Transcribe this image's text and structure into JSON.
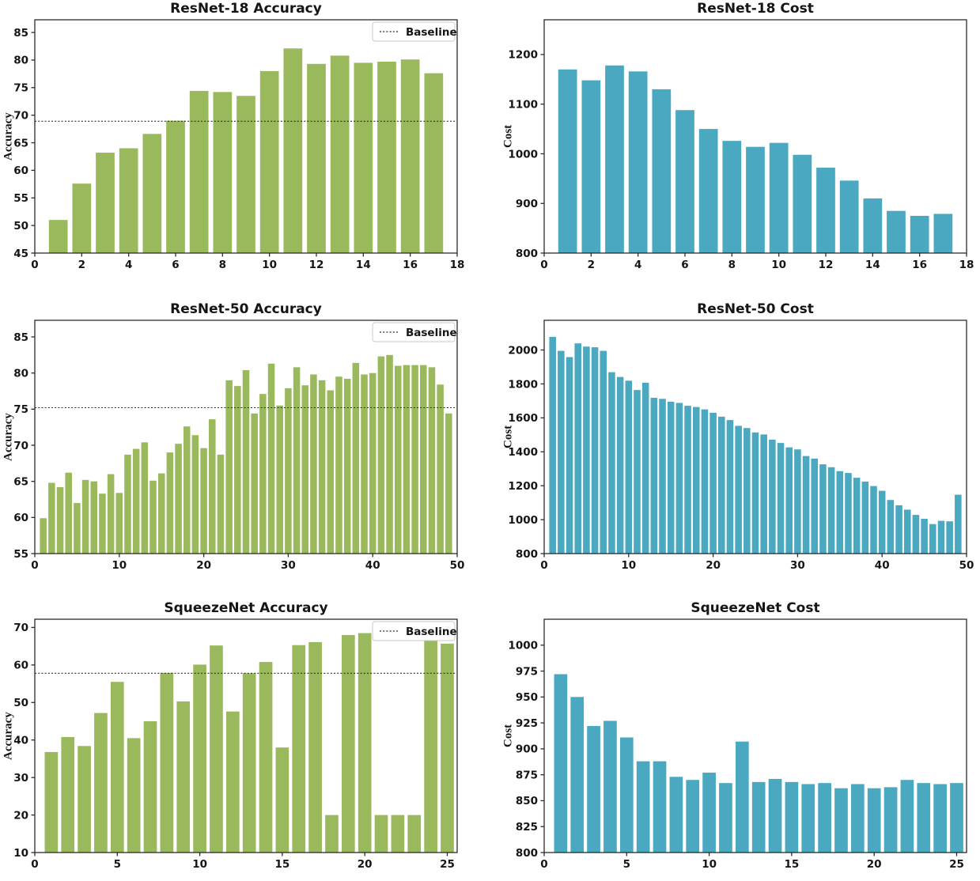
{
  "figure": {
    "background": "#ffffff",
    "rows": 3,
    "cols": 2
  },
  "colors": {
    "accuracy_bars": "#9ab95c",
    "cost_bars": "#4aa8c0",
    "baseline_line": "#2b2b2b",
    "axis": "#2b2b2b",
    "text": "#151515",
    "legend_border": "#c9c9c9"
  },
  "chart_data": [
    {
      "id": "resnet18-accuracy",
      "type": "bar",
      "title": "ResNet-18 Accuracy",
      "xlabel": "",
      "ylabel": "Accuracy",
      "bar_color": "#9ab95c",
      "grid": false,
      "legend_label": "Baseline",
      "legend_position": "upper right",
      "baseline": 68.9,
      "xlim": [
        0,
        18
      ],
      "ylim": [
        45,
        87.3
      ],
      "xticks": [
        0,
        2,
        4,
        6,
        8,
        10,
        12,
        14,
        16,
        18
      ],
      "yticks": [
        45,
        50,
        55,
        60,
        65,
        70,
        75,
        80,
        85
      ],
      "x": [
        1,
        2,
        3,
        4,
        5,
        6,
        7,
        8,
        9,
        10,
        11,
        12,
        13,
        14,
        15,
        16,
        17
      ],
      "values": [
        51.0,
        57.6,
        63.2,
        64.0,
        66.6,
        69.0,
        74.4,
        74.2,
        73.5,
        78.0,
        82.1,
        79.3,
        80.8,
        79.5,
        79.7,
        80.1,
        77.6
      ]
    },
    {
      "id": "resnet18-cost",
      "type": "bar",
      "title": "ResNet-18 Cost",
      "xlabel": "",
      "ylabel": "Cost",
      "bar_color": "#4aa8c0",
      "grid": false,
      "legend_label": null,
      "baseline": null,
      "xlim": [
        0,
        18
      ],
      "ylim": [
        800,
        1270
      ],
      "xticks": [
        0,
        2,
        4,
        6,
        8,
        10,
        12,
        14,
        16,
        18
      ],
      "yticks": [
        800,
        900,
        1000,
        1100,
        1200
      ],
      "x": [
        1,
        2,
        3,
        4,
        5,
        6,
        7,
        8,
        9,
        10,
        11,
        12,
        13,
        14,
        15,
        16,
        17
      ],
      "values": [
        1170,
        1148,
        1178,
        1166,
        1130,
        1088,
        1050,
        1026,
        1014,
        1022,
        998,
        972,
        946,
        910,
        885,
        875,
        879
      ]
    },
    {
      "id": "resnet50-accuracy",
      "type": "bar",
      "title": "ResNet-50 Accuracy",
      "xlabel": "",
      "ylabel": "Accuracy",
      "bar_color": "#9ab95c",
      "grid": false,
      "legend_label": "Baseline",
      "legend_position": "upper right",
      "baseline": 75.2,
      "xlim": [
        0,
        50
      ],
      "ylim": [
        55,
        87.3
      ],
      "xticks": [
        0,
        10,
        20,
        30,
        40,
        50
      ],
      "yticks": [
        55,
        60,
        65,
        70,
        75,
        80,
        85
      ],
      "x": [
        1,
        2,
        3,
        4,
        5,
        6,
        7,
        8,
        9,
        10,
        11,
        12,
        13,
        14,
        15,
        16,
        17,
        18,
        19,
        20,
        21,
        22,
        23,
        24,
        25,
        26,
        27,
        28,
        29,
        30,
        31,
        32,
        33,
        34,
        35,
        36,
        37,
        38,
        39,
        40,
        41,
        42,
        43,
        44,
        45,
        46,
        47,
        48,
        49
      ],
      "values": [
        59.9,
        64.8,
        64.2,
        66.2,
        62.0,
        65.2,
        65.0,
        63.3,
        66.0,
        63.4,
        68.7,
        69.5,
        70.4,
        65.1,
        66.1,
        69.0,
        70.2,
        72.6,
        71.4,
        69.6,
        73.6,
        68.7,
        79.0,
        78.2,
        80.4,
        74.4,
        77.1,
        81.3,
        75.5,
        77.9,
        80.8,
        78.3,
        79.8,
        79.0,
        77.6,
        79.5,
        79.2,
        81.4,
        79.8,
        80.0,
        82.3,
        82.5,
        81.0,
        81.1,
        81.1,
        81.1,
        80.8,
        78.4,
        74.4
      ]
    },
    {
      "id": "resnet50-cost",
      "type": "bar",
      "title": "ResNet-50 Cost",
      "xlabel": "",
      "ylabel": "Cost",
      "bar_color": "#4aa8c0",
      "grid": false,
      "legend_label": null,
      "baseline": null,
      "xlim": [
        0,
        50
      ],
      "ylim": [
        800,
        2175
      ],
      "xticks": [
        0,
        10,
        20,
        30,
        40,
        50
      ],
      "yticks": [
        800,
        1000,
        1200,
        1400,
        1600,
        1800,
        2000
      ],
      "x": [
        1,
        2,
        3,
        4,
        5,
        6,
        7,
        8,
        9,
        10,
        11,
        12,
        13,
        14,
        15,
        16,
        17,
        18,
        19,
        20,
        21,
        22,
        23,
        24,
        25,
        26,
        27,
        28,
        29,
        30,
        31,
        32,
        33,
        34,
        35,
        36,
        37,
        38,
        39,
        40,
        41,
        42,
        43,
        44,
        45,
        46,
        47,
        48,
        49
      ],
      "values": [
        2077,
        1995,
        1958,
        2039,
        2020,
        2016,
        1995,
        1869,
        1841,
        1819,
        1764,
        1807,
        1718,
        1712,
        1695,
        1688,
        1671,
        1664,
        1650,
        1630,
        1607,
        1587,
        1553,
        1540,
        1514,
        1502,
        1471,
        1452,
        1426,
        1414,
        1375,
        1360,
        1326,
        1309,
        1286,
        1275,
        1247,
        1224,
        1198,
        1170,
        1116,
        1085,
        1059,
        1028,
        1005,
        974,
        993,
        990,
        1147
      ]
    },
    {
      "id": "squeezenet-accuracy",
      "type": "bar",
      "title": "SqueezeNet Accuracy",
      "xlabel": "",
      "ylabel": "Accuracy",
      "bar_color": "#9ab95c",
      "grid": false,
      "legend_label": "Baseline",
      "legend_position": "upper right",
      "baseline": 57.8,
      "xlim": [
        0,
        25.6
      ],
      "ylim": [
        10,
        72.2
      ],
      "xticks": [
        0,
        5,
        10,
        15,
        20,
        25
      ],
      "yticks": [
        10,
        20,
        30,
        40,
        50,
        60,
        70
      ],
      "x": [
        1,
        2,
        3,
        4,
        5,
        6,
        7,
        8,
        9,
        10,
        11,
        12,
        13,
        14,
        15,
        16,
        17,
        18,
        19,
        20,
        21,
        22,
        23,
        24,
        25
      ],
      "values": [
        36.8,
        40.8,
        38.4,
        47.2,
        55.5,
        40.5,
        45.0,
        57.9,
        50.3,
        60.1,
        65.2,
        47.6,
        57.8,
        60.8,
        38.0,
        65.3,
        66.1,
        20.0,
        68.0,
        68.5,
        20.0,
        20.0,
        20.0,
        67.1,
        65.7
      ]
    },
    {
      "id": "squeezenet-cost",
      "type": "bar",
      "title": "SqueezeNet Cost",
      "xlabel": "",
      "ylabel": "Cost",
      "bar_color": "#4aa8c0",
      "grid": false,
      "legend_label": null,
      "baseline": null,
      "xlim": [
        0,
        25.6
      ],
      "ylim": [
        800,
        1025
      ],
      "xticks": [
        0,
        5,
        10,
        15,
        20,
        25
      ],
      "yticks": [
        800,
        825,
        850,
        875,
        900,
        925,
        950,
        975,
        1000
      ],
      "x": [
        1,
        2,
        3,
        4,
        5,
        6,
        7,
        8,
        9,
        10,
        11,
        12,
        13,
        14,
        15,
        16,
        17,
        18,
        19,
        20,
        21,
        22,
        23,
        24,
        25
      ],
      "values": [
        972,
        950,
        922,
        927,
        911,
        888,
        888,
        873,
        870,
        877,
        867,
        907,
        868,
        871,
        868,
        866,
        867,
        862,
        866,
        862,
        863,
        870,
        867,
        866,
        867
      ]
    }
  ]
}
